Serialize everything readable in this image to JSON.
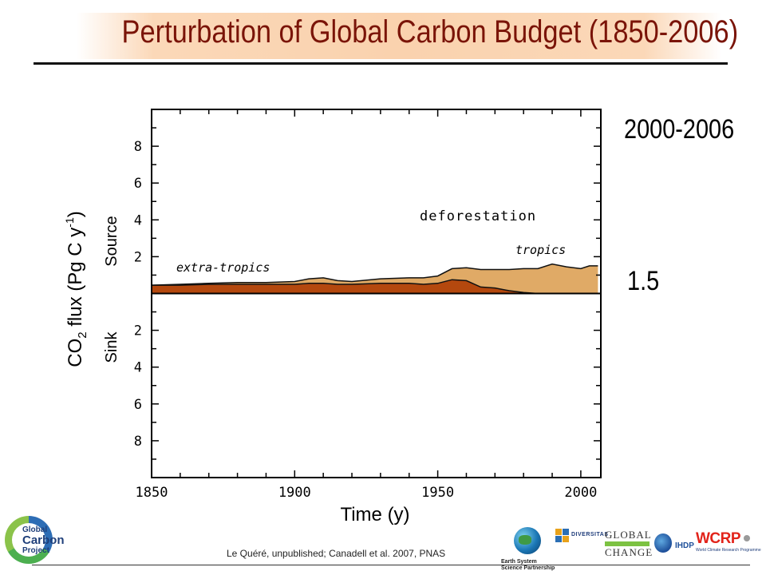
{
  "header": {
    "title": "Perturbation of Global Carbon Budget (1850-2006)"
  },
  "annotations": {
    "period": "2000-2006",
    "flux_value": "1.5"
  },
  "chart_data": {
    "type": "area",
    "xlabel": "Time (y)",
    "ylabel": "CO₂ flux (Pg C y⁻¹)",
    "ylabel_parts": {
      "base": "CO",
      "sub": "2",
      "mid": " flux (Pg C y",
      "sup": "-1",
      "end": ")"
    },
    "source_label": "Source",
    "sink_label": "Sink",
    "xlim": [
      1850,
      2007
    ],
    "ylim": [
      -10,
      10
    ],
    "x_ticks": [
      1850,
      1900,
      1950,
      2000
    ],
    "y_ticks": [
      {
        "value": 8,
        "label": "8"
      },
      {
        "value": 6,
        "label": "6"
      },
      {
        "value": 4,
        "label": "4"
      },
      {
        "value": 2,
        "label": "2"
      },
      {
        "value": -2,
        "label": "2"
      },
      {
        "value": -4,
        "label": "4"
      },
      {
        "value": -6,
        "label": "6"
      },
      {
        "value": -8,
        "label": "8"
      }
    ],
    "x": [
      1850,
      1860,
      1870,
      1880,
      1890,
      1900,
      1905,
      1910,
      1915,
      1920,
      1930,
      1940,
      1945,
      1950,
      1955,
      1960,
      1965,
      1970,
      1975,
      1980,
      1985,
      1990,
      1995,
      2000,
      2003,
      2006
    ],
    "series": [
      {
        "name": "extra-tropics",
        "color": "#b4480e",
        "values": [
          0.45,
          0.45,
          0.5,
          0.5,
          0.5,
          0.5,
          0.55,
          0.55,
          0.5,
          0.5,
          0.55,
          0.55,
          0.5,
          0.55,
          0.75,
          0.7,
          0.35,
          0.3,
          0.15,
          0.05,
          0.0,
          0.0,
          0.0,
          0.0,
          0.0,
          0.0
        ]
      },
      {
        "name": "tropics",
        "color": "#e0aa66",
        "values": [
          0.0,
          0.05,
          0.05,
          0.1,
          0.1,
          0.15,
          0.25,
          0.3,
          0.2,
          0.15,
          0.25,
          0.3,
          0.35,
          0.4,
          0.6,
          0.7,
          0.95,
          1.0,
          1.15,
          1.3,
          1.35,
          1.6,
          1.45,
          1.35,
          1.5,
          1.5
        ]
      }
    ],
    "annotations_text": {
      "group": "deforestation",
      "extra_tropics": "extra-tropics",
      "tropics": "tropics"
    },
    "grid": false,
    "legend": "none"
  },
  "footer": {
    "citation": "Le Quéré, unpublished; Canadell et al. 2007, PNAS"
  },
  "logos": {
    "gcp_line1": "Global",
    "gcp_line2": "Carbon",
    "gcp_line3": "Project",
    "essp_line1": "Earth System",
    "essp_line2": "Science Partnership",
    "diversitas": "DIVERSITAS",
    "igbp_line1": "GLOBAL",
    "igbp_line2": "CHANGE",
    "ihdp": "IHDP",
    "wcrp": "WCRP",
    "wcrp_sub": "World Climate Research Programme"
  }
}
